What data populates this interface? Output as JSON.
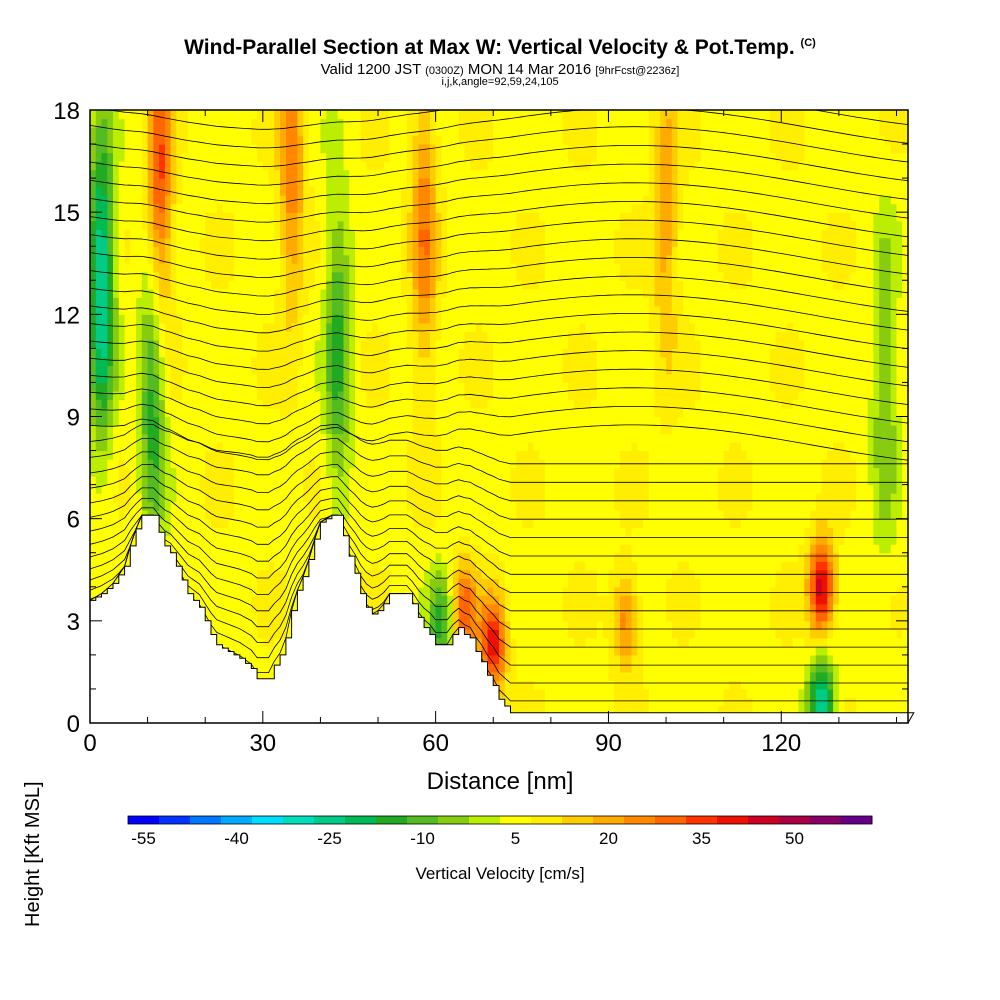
{
  "title": "Wind-Parallel Section at Max W: Vertical Velocity & Pot.Temp.",
  "title_tag": "(C)",
  "subtitle_valid": "Valid 1200 JST",
  "subtitle_utc": "(0300Z)",
  "subtitle_date": "MON 14 Mar 2016",
  "subtitle_fcst": "[9hrFcst@2236z]",
  "subtitle_ijk": "i,j,k,angle=92,59,24,105",
  "chart_data": {
    "type": "heatmap",
    "xlabel": "Distance [nm]",
    "ylabel": "Height [Kft MSL]",
    "xlim": [
      0,
      142
    ],
    "ylim": [
      0,
      18
    ],
    "x_ticks": [
      0,
      30,
      60,
      90,
      120
    ],
    "y_ticks": [
      0,
      3,
      6,
      9,
      12,
      15,
      18
    ],
    "colorbar": {
      "label": "Vertical Velocity [cm/s]",
      "tick_labels": [
        "-55",
        "-40",
        "-25",
        "-10",
        "5",
        "20",
        "35",
        "50"
      ],
      "tick_values": [
        -55,
        -40,
        -25,
        -10,
        5,
        20,
        35,
        50
      ],
      "range": [
        -57.5,
        62.5
      ],
      "colors": [
        "#0000ff",
        "#0033ff",
        "#0077ff",
        "#00aaff",
        "#00ddff",
        "#00ddbb",
        "#00cc88",
        "#00bb55",
        "#22aa22",
        "#55bb22",
        "#88cc11",
        "#bbee00",
        "#ffff00",
        "#ffee00",
        "#ffcc00",
        "#ffaa00",
        "#ff8800",
        "#ff6600",
        "#ff3300",
        "#ee1100",
        "#cc0022",
        "#aa0044",
        "#880066",
        "#660088"
      ]
    },
    "terrain_kft": [
      [
        0,
        3.6
      ],
      [
        2,
        3.8
      ],
      [
        4,
        4.1
      ],
      [
        6,
        4.6
      ],
      [
        7,
        5.2
      ],
      [
        8,
        5.7
      ],
      [
        9,
        6.1
      ],
      [
        11,
        6.1
      ],
      [
        12,
        5.6
      ],
      [
        13,
        5.2
      ],
      [
        14,
        5.0
      ],
      [
        15,
        4.6
      ],
      [
        16,
        4.2
      ],
      [
        17,
        3.8
      ],
      [
        18,
        3.6
      ],
      [
        19,
        3.4
      ],
      [
        20,
        3.0
      ],
      [
        21,
        2.6
      ],
      [
        22,
        2.3
      ],
      [
        24,
        2.1
      ],
      [
        26,
        1.9
      ],
      [
        28,
        1.6
      ],
      [
        29,
        1.3
      ],
      [
        31,
        1.3
      ],
      [
        32,
        1.7
      ],
      [
        33,
        2.0
      ],
      [
        34,
        2.5
      ],
      [
        35,
        3.3
      ],
      [
        36,
        3.9
      ],
      [
        37,
        4.3
      ],
      [
        38,
        4.8
      ],
      [
        39,
        5.4
      ],
      [
        40,
        5.9
      ],
      [
        42,
        6.1
      ],
      [
        43,
        6.1
      ],
      [
        44,
        5.5
      ],
      [
        45,
        4.9
      ],
      [
        46,
        4.4
      ],
      [
        47,
        3.8
      ],
      [
        48,
        3.4
      ],
      [
        49,
        3.2
      ],
      [
        50,
        3.3
      ],
      [
        51,
        3.5
      ],
      [
        52,
        3.8
      ],
      [
        55,
        3.8
      ],
      [
        56,
        3.5
      ],
      [
        57,
        3.1
      ],
      [
        58,
        2.8
      ],
      [
        59,
        2.6
      ],
      [
        60,
        2.3
      ],
      [
        62,
        2.3
      ],
      [
        63,
        2.6
      ],
      [
        64,
        2.8
      ],
      [
        65,
        2.6
      ],
      [
        66,
        2.5
      ],
      [
        67,
        2.1
      ],
      [
        68,
        1.8
      ],
      [
        69,
        1.4
      ],
      [
        70,
        1.1
      ],
      [
        71,
        0.7
      ],
      [
        72,
        0.5
      ],
      [
        73,
        0.3
      ],
      [
        75,
        0.3
      ],
      [
        142,
        0.3
      ]
    ],
    "theta_contours_c": [
      2,
      4,
      6,
      8,
      10,
      12,
      14,
      16,
      18,
      20,
      22,
      24,
      26,
      28,
      30,
      32,
      34,
      36,
      38,
      40,
      42,
      44,
      46,
      48,
      50,
      52,
      54,
      56,
      58,
      60,
      62,
      64,
      66
    ],
    "updraft_maxima_cm_s": [
      {
        "x": 12,
        "y": 15.5,
        "w": 35
      },
      {
        "x": 35,
        "y": 16.5,
        "w": 25
      },
      {
        "x": 58,
        "y": 14.5,
        "w": 25
      },
      {
        "x": 65,
        "y": 3.3,
        "w": 30
      },
      {
        "x": 70,
        "y": 2.3,
        "w": 40
      },
      {
        "x": 93,
        "y": 3.0,
        "w": 25
      },
      {
        "x": 100,
        "y": 15.0,
        "w": 20
      },
      {
        "x": 127,
        "y": 4.0,
        "w": 45
      }
    ],
    "downdraft_minima_cm_s": [
      {
        "x": 2,
        "y": 13.0,
        "w": -30
      },
      {
        "x": 11,
        "y": 10.0,
        "w": -20
      },
      {
        "x": 43,
        "y": 11.0,
        "w": -15
      },
      {
        "x": 61,
        "y": 3.0,
        "w": -15
      },
      {
        "x": 127,
        "y": 0.6,
        "w": -30
      },
      {
        "x": 138,
        "y": 10.0,
        "w": -10
      }
    ]
  }
}
